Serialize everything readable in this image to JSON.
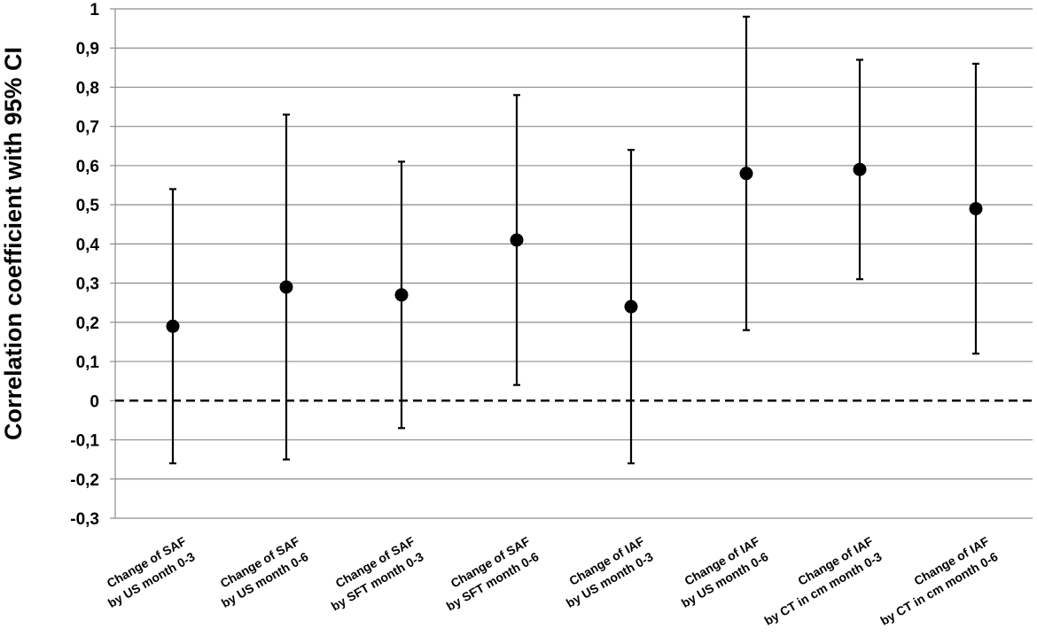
{
  "chart_data": {
    "type": "scatter",
    "subtype": "point-estimate-with-error-bars",
    "title": "",
    "xlabel": "",
    "ylabel": "Correlation coefficient with 95% CI",
    "ylim": [
      -0.3,
      1.0
    ],
    "ytick_values": [
      1,
      0.9,
      0.8,
      0.7,
      0.6,
      0.5,
      0.4,
      0.3,
      0.2,
      0.1,
      0,
      -0.1,
      -0.2,
      -0.3
    ],
    "ytick_labels": [
      "1",
      "0,9",
      "0,8",
      "0,7",
      "0,6",
      "0,5",
      "0,4",
      "0,3",
      "0,2",
      "0,1",
      "0",
      "-0,1",
      "-0,2",
      "-0,3"
    ],
    "grid": "horizontal",
    "reference_line": {
      "y": 0,
      "style": "dashed"
    },
    "categories": [
      [
        "Change of SAF",
        "by US month 0-3"
      ],
      [
        "Change of SAF",
        "by US month 0-6"
      ],
      [
        "Change of SAF",
        "by SFT month 0-3"
      ],
      [
        "Change of SAF",
        "by SFT month 0-6"
      ],
      [
        "Change of IAF",
        "by US month 0-3"
      ],
      [
        "Change of IAF",
        "by US month 0-6"
      ],
      [
        "Change of IAF",
        "by CT in cm month 0-3"
      ],
      [
        "Change of IAF",
        "by CT in cm month 0-6"
      ]
    ],
    "estimate": [
      0.19,
      0.29,
      0.27,
      0.41,
      0.24,
      0.58,
      0.59,
      0.49
    ],
    "ci_lower": [
      -0.16,
      -0.15,
      -0.07,
      0.04,
      -0.16,
      0.18,
      0.31,
      0.12
    ],
    "ci_upper": [
      0.54,
      0.73,
      0.61,
      0.78,
      0.64,
      0.98,
      0.87,
      0.86
    ]
  }
}
